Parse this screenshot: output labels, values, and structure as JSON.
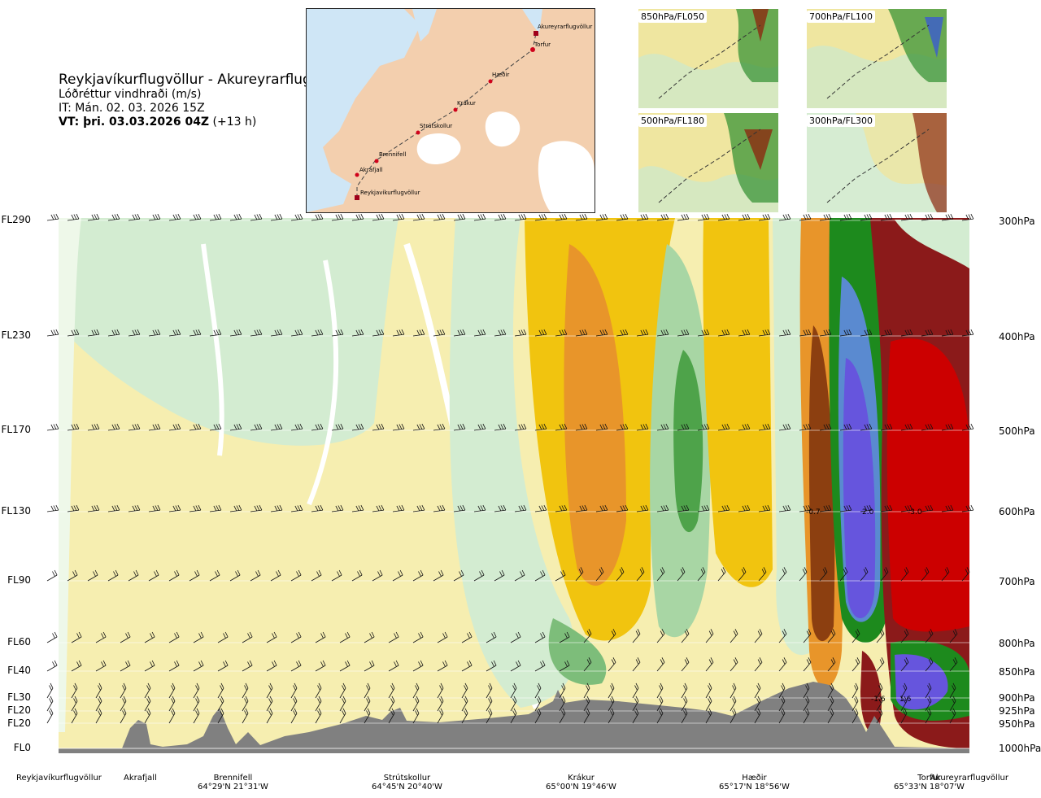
{
  "title": {
    "route": "Reykjavíkurflugvöllur - Akureyrarflugvöllur",
    "variable": "Lóðréttur vindhraði (m/s)",
    "issue_time": "IT: Mán. 02. 03. 2026 15Z",
    "valid_time_bold": "VT: þri. 03.03.2026 04Z",
    "valid_time_offset": "(+13 h)"
  },
  "route_map": {
    "waypoints": [
      "Akureyrarflugvöllur",
      "Torfur",
      "Hæðir",
      "Krákur",
      "Strútskollur",
      "Brennifell",
      "Akrafjall",
      "Reykjavíkurflugvöllur"
    ],
    "colors": {
      "land": "#f3cfae",
      "sea": "#cfe6f6",
      "ice": "#ffffff",
      "route": "#444444",
      "point": "#d0021b"
    }
  },
  "insets": [
    {
      "label": "850hPa/FL050"
    },
    {
      "label": "700hPa/FL100"
    },
    {
      "label": "500hPa/FL180"
    },
    {
      "label": "300hPa/FL300"
    }
  ],
  "chart_data": {
    "type": "heatmap",
    "title": "Lóðréttur vindhraði (m/s)",
    "x_labels_note": "route stations along cross-section",
    "levels_fl": [
      "FL290",
      "FL230",
      "FL170",
      "FL130",
      "FL90",
      "FL60",
      "FL40",
      "FL30",
      "FL20",
      "FL20",
      "FL0"
    ],
    "levels_hpa": [
      "300hPa",
      "400hPa",
      "500hPa",
      "600hPa",
      "700hPa",
      "800hPa",
      "850hPa",
      "900hPa",
      "925hPa",
      "950hPa",
      "1000hPa"
    ],
    "stations": [
      {
        "name": "Reykjavíkurflugvöllur",
        "coord": ""
      },
      {
        "name": "Akrafjall",
        "coord": ""
      },
      {
        "name": "Brennifell",
        "coord": "64°29'N 21°31'W"
      },
      {
        "name": "Strútskollur",
        "coord": "64°45'N 20°40'W"
      },
      {
        "name": "Krákur",
        "coord": "65°00'N 19°46'W"
      },
      {
        "name": "Hæðir",
        "coord": "65°17'N 18°56'W"
      },
      {
        "name": "Torfur",
        "coord": "65°33'N 18°07'W"
      },
      {
        "name": "Akureyrarflugvöllur",
        "coord": ""
      }
    ],
    "annotations": [
      {
        "text": "-0.7",
        "level": "600hPa"
      },
      {
        "text": "2.0",
        "level": "600hPa"
      },
      {
        "text": "-3.0",
        "level": "600hPa"
      },
      {
        "text": "-1.6",
        "level": "900hPa"
      },
      {
        "text": "1.6",
        "level": "900hPa"
      }
    ],
    "colors": {
      "strong_down": "#8b1a1a",
      "down_red": "#cc0000",
      "down_brown": "#8c3f10",
      "down_orange": "#e8952a",
      "down_yellow": "#f1c40f",
      "weak_down": "#f7efa8",
      "near_zero": "#ffffff",
      "weak_up": "#d3ecd1",
      "up_green": "#7dbd7a",
      "up_dark": "#1d8a1d",
      "up_blue": "#5a8ad0",
      "up_purple": "#6655dd",
      "terrain": "#808080"
    }
  }
}
